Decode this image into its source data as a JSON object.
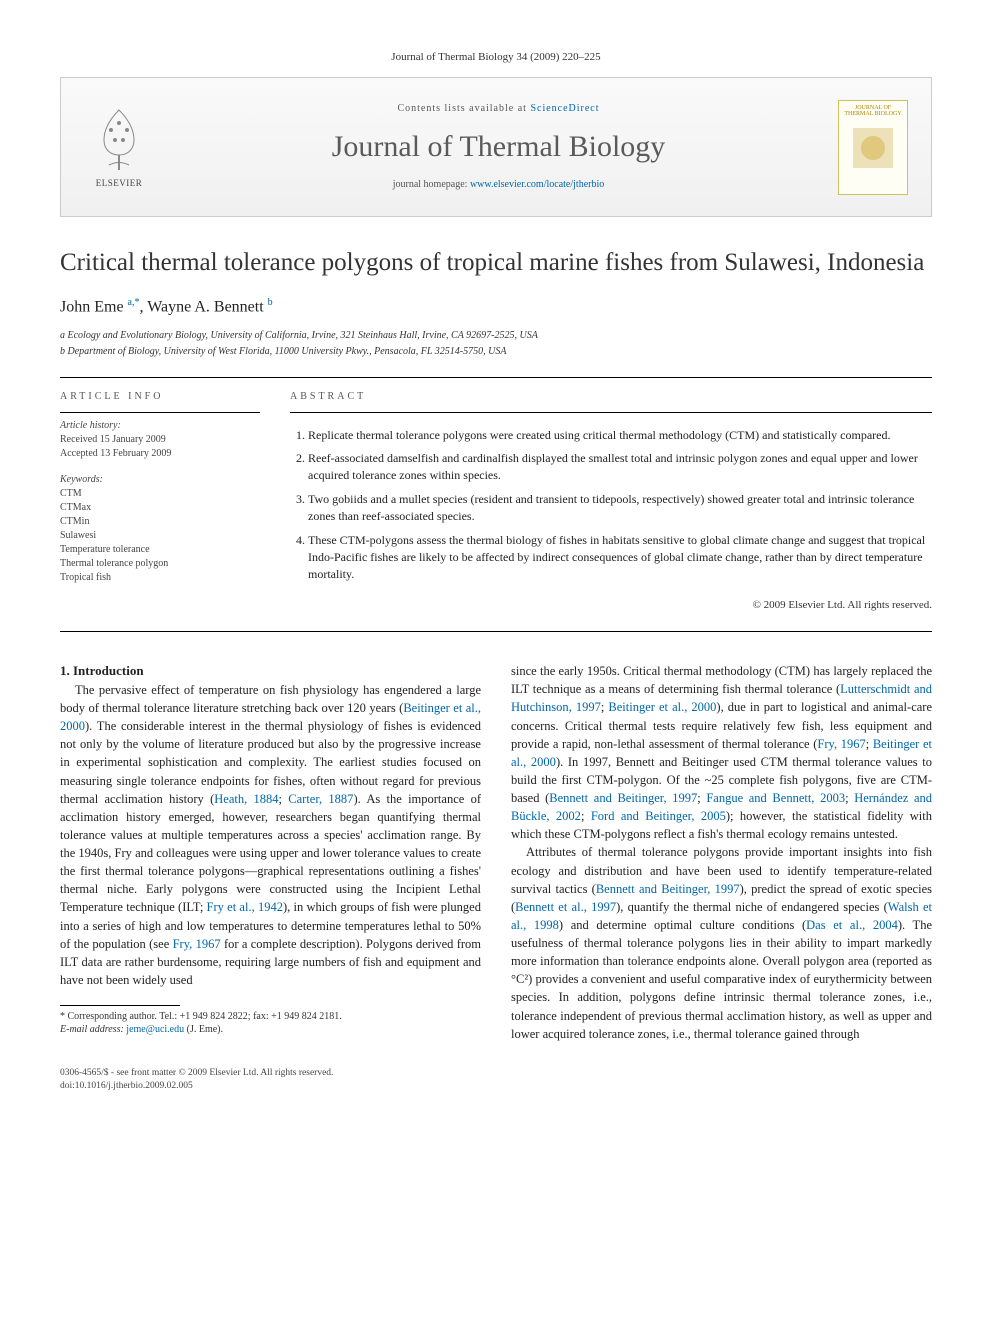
{
  "header": {
    "running": "Journal of Thermal Biology 34 (2009) 220–225"
  },
  "banner": {
    "contents_prefix": "Contents lists available at",
    "contents_link": "ScienceDirect",
    "journal": "Journal of Thermal Biology",
    "homepage_prefix": "journal homepage:",
    "homepage_url": "www.elsevier.com/locate/jtherbio",
    "publisher": "ELSEVIER",
    "cover_label": "JOURNAL OF THERMAL BIOLOGY"
  },
  "article": {
    "title": "Critical thermal tolerance polygons of tropical marine fishes from Sulawesi, Indonesia",
    "authors_html": "John Eme <sup>a,*</sup>, Wayne A. Bennett <sup>b</sup>",
    "affiliations": [
      "a Ecology and Evolutionary Biology, University of California, Irvine, 321 Steinhaus Hall, Irvine, CA 92697-2525, USA",
      "b Department of Biology, University of West Florida, 11000 University Pkwy., Pensacola, FL 32514-5750, USA"
    ]
  },
  "info": {
    "heading": "article info",
    "history_label": "Article history:",
    "history": [
      "Received 15 January 2009",
      "Accepted 13 February 2009"
    ],
    "keywords_label": "Keywords:",
    "keywords": [
      "CTM",
      "CTMax",
      "CTMin",
      "Sulawesi",
      "Temperature tolerance",
      "Thermal tolerance polygon",
      "Tropical fish"
    ]
  },
  "abstract": {
    "heading": "abstract",
    "items": [
      "Replicate thermal tolerance polygons were created using critical thermal methodology (CTM) and statistically compared.",
      "Reef-associated damselfish and cardinalfish displayed the smallest total and intrinsic polygon zones and equal upper and lower acquired tolerance zones within species.",
      "Two gobiids and a mullet species (resident and transient to tidepools, respectively) showed greater total and intrinsic tolerance zones than reef-associated species.",
      "These CTM-polygons assess the thermal biology of fishes in habitats sensitive to global climate change and suggest that tropical Indo-Pacific fishes are likely to be affected by indirect consequences of global climate change, rather than by direct temperature mortality."
    ],
    "copyright": "© 2009 Elsevier Ltd. All rights reserved."
  },
  "section1": {
    "heading": "1. Introduction"
  },
  "body": {
    "col1_p1_a": "The pervasive effect of temperature on fish physiology has engendered a large body of thermal tolerance literature stretching back over 120 years (",
    "ref1": "Beitinger et al., 2000",
    "col1_p1_b": "). The considerable interest in the thermal physiology of fishes is evidenced not only by the volume of literature produced but also by the progressive increase in experimental sophistication and complexity. The earliest studies focused on measuring single tolerance endpoints for fishes, often without regard for previous thermal acclimation history (",
    "ref2": "Heath, 1884",
    "sep1": "; ",
    "ref3": "Carter, 1887",
    "col1_p1_c": "). As the importance of acclimation history emerged, however, researchers began quantifying thermal tolerance values at multiple temperatures across a species' acclimation range. By the 1940s, Fry and colleagues were using upper and lower tolerance values to create the first thermal tolerance polygons—graphical representations outlining a fishes' thermal niche. Early polygons were constructed using the Incipient Lethal Temperature technique (ILT; ",
    "ref4": "Fry et al., 1942",
    "col1_p1_d": "), in which groups of fish were plunged into a series of high and low temperatures to determine temperatures lethal to 50% of the population (see ",
    "ref5": "Fry, 1967",
    "col1_p1_e": " for a complete description). Polygons derived from ILT data are rather burdensome, requiring large numbers of fish and equipment and have not been widely used",
    "col2_p1_a": "since the early 1950s. Critical thermal methodology (CTM) has largely replaced the ILT technique as a means of determining fish thermal tolerance (",
    "ref6": "Lutterschmidt and Hutchinson, 1997",
    "ref7": "Beitinger et al., 2000",
    "col2_p1_b": "), due in part to logistical and animal-care concerns. Critical thermal tests require relatively few fish, less equipment and provide a rapid, non-lethal assessment of thermal tolerance (",
    "ref8": "Fry, 1967",
    "ref9": "Beitinger et al., 2000",
    "col2_p1_c": "). In 1997, Bennett and Beitinger used CTM thermal tolerance values to build the first CTM-polygon. Of the ~25 complete fish polygons, five are CTM-based (",
    "ref10": "Bennett and Beitinger, 1997",
    "ref11": "Fangue and Bennett, 2003",
    "ref12": "Hernández and Bückle, 2002",
    "ref13": "Ford and Beitinger, 2005",
    "col2_p1_d": "); however, the statistical fidelity with which these CTM-polygons reflect a fish's thermal ecology remains untested.",
    "col2_p2_a": "Attributes of thermal tolerance polygons provide important insights into fish ecology and distribution and have been used to identify temperature-related survival tactics (",
    "ref14": "Bennett and Beitinger, 1997",
    "col2_p2_b": "), predict the spread of exotic species (",
    "ref15": "Bennett et al., 1997",
    "col2_p2_c": "), quantify the thermal niche of endangered species (",
    "ref16": "Walsh et al., 1998",
    "col2_p2_d": ") and determine optimal culture conditions (",
    "ref17": "Das et al., 2004",
    "col2_p2_e": "). The usefulness of thermal tolerance polygons lies in their ability to impart markedly more information than tolerance endpoints alone. Overall polygon area (reported as °C²) provides a convenient and useful comparative index of eurythermicity between species. In addition, polygons define intrinsic thermal tolerance zones, i.e., tolerance independent of previous thermal acclimation history, as well as upper and lower acquired tolerance zones, i.e., thermal tolerance gained through"
  },
  "footnote": {
    "corr": "* Corresponding author. Tel.: +1 949 824 2822; fax: +1 949 824 2181.",
    "email_label": "E-mail address:",
    "email": "jeme@uci.edu",
    "email_suffix": "(J. Eme)."
  },
  "footer": {
    "left": "0306-4565/$ - see front matter © 2009 Elsevier Ltd. All rights reserved.",
    "doi": "doi:10.1016/j.jtherbio.2009.02.005"
  },
  "colors": {
    "link": "#0066aa",
    "text": "#222222",
    "muted": "#555555",
    "rule": "#000000"
  }
}
